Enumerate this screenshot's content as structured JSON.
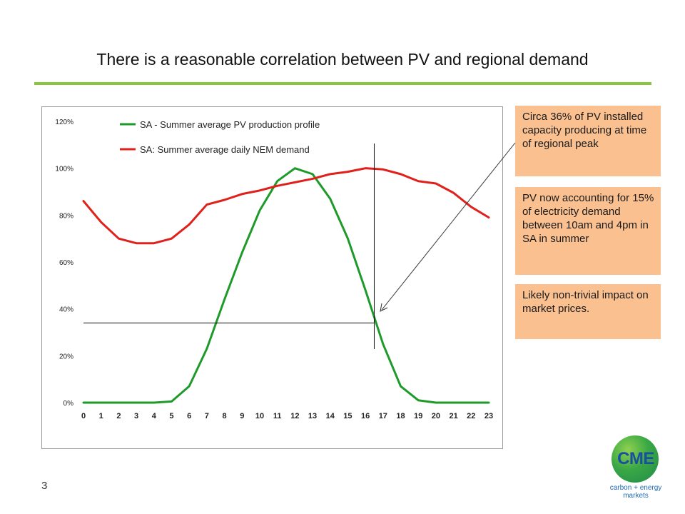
{
  "slide": {
    "title": "There is a reasonable correlation between PV and regional demand",
    "page_number": "3"
  },
  "callouts": [
    "Circa 36% of PV installed capacity producing at time of regional peak",
    "PV now accounting for 15% of electricity demand between 10am and 4pm in SA in summer",
    "Likely non-trivial impact on market prices."
  ],
  "logo": {
    "text": "CME",
    "tagline_1": "carbon + energy",
    "tagline_2": "markets"
  },
  "chart_data": {
    "type": "line",
    "x": [
      0,
      1,
      2,
      3,
      4,
      5,
      6,
      7,
      8,
      9,
      10,
      11,
      12,
      13,
      14,
      15,
      16,
      17,
      18,
      19,
      20,
      21,
      22,
      23
    ],
    "ylim": [
      0,
      1.2
    ],
    "yticks": [
      0,
      0.2,
      0.4,
      0.6,
      0.8,
      1.0,
      1.2
    ],
    "ytick_labels": [
      "0%",
      "20%",
      "40%",
      "60%",
      "80%",
      "100%",
      "120%"
    ],
    "xtick_labels": [
      "0",
      "1",
      "2",
      "3",
      "4",
      "5",
      "6",
      "7",
      "8",
      "9",
      "10",
      "11",
      "12",
      "13",
      "14",
      "15",
      "16",
      "17",
      "18",
      "19",
      "20",
      "21",
      "22",
      "23"
    ],
    "legend_position": "top-center",
    "grid": false,
    "series": [
      {
        "name": "SA - Summer average PV production profile",
        "color": "#1e9a2a",
        "values": [
          0,
          0,
          0,
          0,
          0,
          0.005,
          0.07,
          0.23,
          0.44,
          0.64,
          0.82,
          0.945,
          1.0,
          0.975,
          0.87,
          0.7,
          0.48,
          0.25,
          0.07,
          0.01,
          0,
          0,
          0,
          0
        ]
      },
      {
        "name": "SA: Summer average daily NEM demand",
        "color": "#e0201b",
        "values": [
          0.86,
          0.77,
          0.7,
          0.68,
          0.68,
          0.7,
          0.76,
          0.845,
          0.865,
          0.89,
          0.905,
          0.925,
          0.94,
          0.955,
          0.975,
          0.985,
          1.0,
          0.995,
          0.975,
          0.945,
          0.935,
          0.895,
          0.835,
          0.79
        ]
      }
    ],
    "annotations": {
      "peak_hour": 16.5,
      "peak_level": 0.34
    }
  }
}
